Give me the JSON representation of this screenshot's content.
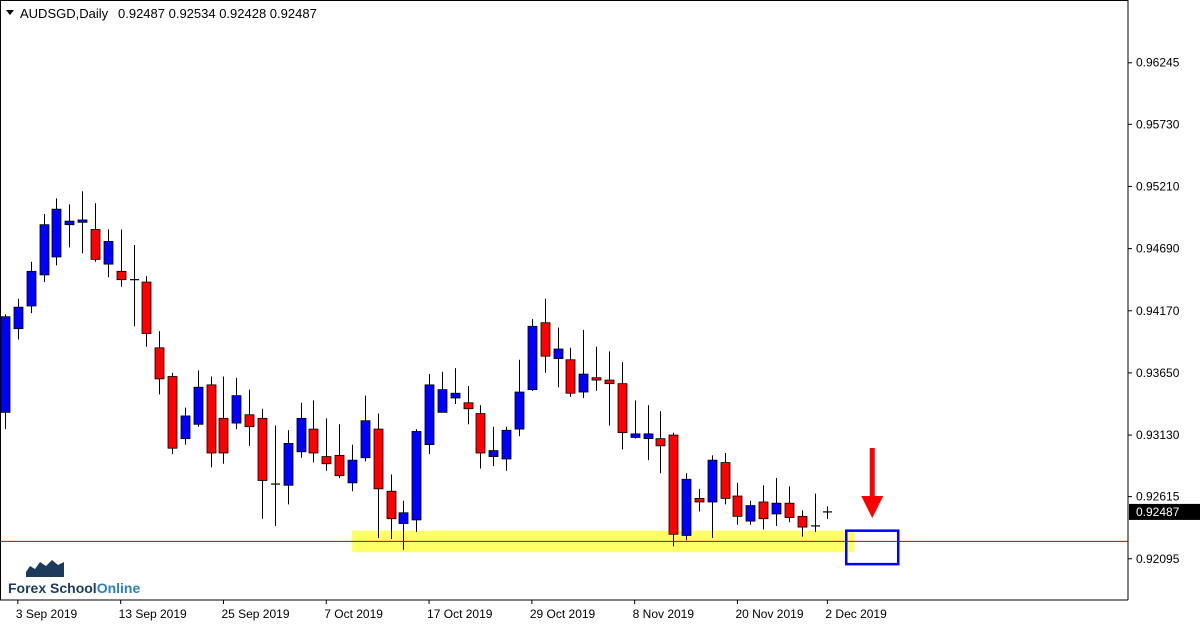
{
  "header": {
    "symbol_timeframe": "AUDSGD,Daily",
    "ohlc": "0.92487 0.92534 0.92428 0.92487"
  },
  "logo": {
    "text_1": "Forex School",
    "text_2": "Online"
  },
  "colors": {
    "bull": "#0000ff",
    "bear": "#ff0000",
    "wick": "#000000",
    "support_zone": "#ffff66",
    "price_line": "#c00000",
    "arrow": "#ff0000",
    "box": "#0000ff",
    "logo_blue": "#2a7fc1",
    "logo_dark": "#1b3a5c"
  },
  "annotations": {
    "support_zone": {
      "x_start": "10 Oct 2019",
      "x_end": "29 Nov 2019",
      "y_low": 0.9215,
      "y_high": 0.9233
    },
    "arrow_target_box": {
      "x": "3 Dec 2019",
      "y_low": 0.9205,
      "y_high": 0.9233
    }
  },
  "chart_data": {
    "type": "candlestick",
    "title": "AUDSGD,Daily",
    "current_price": "0.92487",
    "ylim": [
      0.9175,
      0.9677
    ],
    "y_ticks": [
      "0.96245",
      "0.95730",
      "0.95210",
      "0.94690",
      "0.94170",
      "0.93650",
      "0.93130",
      "0.92615",
      "0.92095"
    ],
    "x_ticks": [
      "3 Sep 2019",
      "13 Sep 2019",
      "25 Sep 2019",
      "7 Oct 2019",
      "17 Oct 2019",
      "29 Oct 2019",
      "8 Nov 2019",
      "20 Nov 2019",
      "2 Dec 2019"
    ],
    "candles": [
      {
        "date": "2 Sep 2019",
        "o": 0.9332,
        "h": 0.9414,
        "l": 0.9318,
        "c": 0.9412
      },
      {
        "date": "3 Sep 2019",
        "o": 0.9402,
        "h": 0.9427,
        "l": 0.9393,
        "c": 0.942
      },
      {
        "date": "4 Sep 2019",
        "o": 0.9421,
        "h": 0.9458,
        "l": 0.9415,
        "c": 0.945
      },
      {
        "date": "5 Sep 2019",
        "o": 0.9447,
        "h": 0.9498,
        "l": 0.9441,
        "c": 0.9489
      },
      {
        "date": "6 Sep 2019",
        "o": 0.9462,
        "h": 0.9511,
        "l": 0.9455,
        "c": 0.9502
      },
      {
        "date": "9 Sep 2019",
        "o": 0.9489,
        "h": 0.9506,
        "l": 0.947,
        "c": 0.9492
      },
      {
        "date": "10 Sep 2019",
        "o": 0.9491,
        "h": 0.9517,
        "l": 0.9465,
        "c": 0.9493
      },
      {
        "date": "11 Sep 2019",
        "o": 0.9485,
        "h": 0.9507,
        "l": 0.9458,
        "c": 0.946
      },
      {
        "date": "12 Sep 2019",
        "o": 0.9456,
        "h": 0.9485,
        "l": 0.9445,
        "c": 0.9475
      },
      {
        "date": "13 Sep 2019",
        "o": 0.945,
        "h": 0.9485,
        "l": 0.9437,
        "c": 0.9443
      },
      {
        "date": "16 Sep 2019",
        "o": 0.9443,
        "h": 0.9472,
        "l": 0.9404,
        "c": 0.9443
      },
      {
        "date": "17 Sep 2019",
        "o": 0.9441,
        "h": 0.9446,
        "l": 0.9387,
        "c": 0.9398
      },
      {
        "date": "18 Sep 2019",
        "o": 0.9386,
        "h": 0.94,
        "l": 0.9347,
        "c": 0.936
      },
      {
        "date": "19 Sep 2019",
        "o": 0.9362,
        "h": 0.9365,
        "l": 0.9297,
        "c": 0.9302
      },
      {
        "date": "20 Sep 2019",
        "o": 0.931,
        "h": 0.9336,
        "l": 0.9305,
        "c": 0.9329
      },
      {
        "date": "23 Sep 2019",
        "o": 0.9322,
        "h": 0.9367,
        "l": 0.932,
        "c": 0.9353
      },
      {
        "date": "24 Sep 2019",
        "o": 0.9355,
        "h": 0.9362,
        "l": 0.9286,
        "c": 0.9298
      },
      {
        "date": "25 Sep 2019",
        "o": 0.9327,
        "h": 0.9362,
        "l": 0.9289,
        "c": 0.9298
      },
      {
        "date": "26 Sep 2019",
        "o": 0.9323,
        "h": 0.9361,
        "l": 0.9318,
        "c": 0.9346
      },
      {
        "date": "27 Sep 2019",
        "o": 0.933,
        "h": 0.9351,
        "l": 0.9304,
        "c": 0.932
      },
      {
        "date": "30 Sep 2019",
        "o": 0.9327,
        "h": 0.9335,
        "l": 0.9243,
        "c": 0.9275
      },
      {
        "date": "1 Oct 2019",
        "o": 0.9273,
        "h": 0.9321,
        "l": 0.9237,
        "c": 0.9272
      },
      {
        "date": "2 Oct 2019",
        "o": 0.9271,
        "h": 0.9317,
        "l": 0.9255,
        "c": 0.9306
      },
      {
        "date": "3 Oct 2019",
        "o": 0.9299,
        "h": 0.934,
        "l": 0.9294,
        "c": 0.9327
      },
      {
        "date": "4 Oct 2019",
        "o": 0.9318,
        "h": 0.9342,
        "l": 0.929,
        "c": 0.9298
      },
      {
        "date": "7 Oct 2019",
        "o": 0.9295,
        "h": 0.9327,
        "l": 0.9283,
        "c": 0.9289
      },
      {
        "date": "8 Oct 2019",
        "o": 0.9296,
        "h": 0.9322,
        "l": 0.9277,
        "c": 0.9279
      },
      {
        "date": "9 Oct 2019",
        "o": 0.9273,
        "h": 0.9305,
        "l": 0.9266,
        "c": 0.9292
      },
      {
        "date": "10 Oct 2019",
        "o": 0.9294,
        "h": 0.9346,
        "l": 0.9291,
        "c": 0.9325
      },
      {
        "date": "11 Oct 2019",
        "o": 0.9318,
        "h": 0.9331,
        "l": 0.9227,
        "c": 0.9268
      },
      {
        "date": "14 Oct 2019",
        "o": 0.9266,
        "h": 0.928,
        "l": 0.9226,
        "c": 0.9243
      },
      {
        "date": "15 Oct 2019",
        "o": 0.9239,
        "h": 0.9258,
        "l": 0.9217,
        "c": 0.9248
      },
      {
        "date": "16 Oct 2019",
        "o": 0.9242,
        "h": 0.9318,
        "l": 0.9232,
        "c": 0.9316
      },
      {
        "date": "17 Oct 2019",
        "o": 0.9305,
        "h": 0.9364,
        "l": 0.9297,
        "c": 0.9355
      },
      {
        "date": "18 Oct 2019",
        "o": 0.9332,
        "h": 0.9366,
        "l": 0.9332,
        "c": 0.9351
      },
      {
        "date": "21 Oct 2019",
        "o": 0.9344,
        "h": 0.9369,
        "l": 0.9339,
        "c": 0.9348
      },
      {
        "date": "22 Oct 2019",
        "o": 0.934,
        "h": 0.9354,
        "l": 0.9322,
        "c": 0.9335
      },
      {
        "date": "23 Oct 2019",
        "o": 0.9331,
        "h": 0.9338,
        "l": 0.9285,
        "c": 0.9298
      },
      {
        "date": "24 Oct 2019",
        "o": 0.9295,
        "h": 0.932,
        "l": 0.9287,
        "c": 0.93
      },
      {
        "date": "25 Oct 2019",
        "o": 0.9293,
        "h": 0.932,
        "l": 0.9283,
        "c": 0.9317
      },
      {
        "date": "28 Oct 2019",
        "o": 0.9318,
        "h": 0.9376,
        "l": 0.9312,
        "c": 0.9349
      },
      {
        "date": "29 Oct 2019",
        "o": 0.9351,
        "h": 0.941,
        "l": 0.935,
        "c": 0.9404
      },
      {
        "date": "30 Oct 2019",
        "o": 0.9407,
        "h": 0.9427,
        "l": 0.9365,
        "c": 0.9379
      },
      {
        "date": "31 Oct 2019",
        "o": 0.9377,
        "h": 0.9403,
        "l": 0.9353,
        "c": 0.9385
      },
      {
        "date": "1 Nov 2019",
        "o": 0.9376,
        "h": 0.9386,
        "l": 0.9345,
        "c": 0.9348
      },
      {
        "date": "4 Nov 2019",
        "o": 0.9349,
        "h": 0.9401,
        "l": 0.9344,
        "c": 0.9364
      },
      {
        "date": "5 Nov 2019",
        "o": 0.9361,
        "h": 0.9387,
        "l": 0.935,
        "c": 0.9359
      },
      {
        "date": "6 Nov 2019",
        "o": 0.9359,
        "h": 0.9383,
        "l": 0.9321,
        "c": 0.9356
      },
      {
        "date": "7 Nov 2019",
        "o": 0.9356,
        "h": 0.9374,
        "l": 0.9301,
        "c": 0.9315
      },
      {
        "date": "8 Nov 2019",
        "o": 0.9311,
        "h": 0.9342,
        "l": 0.931,
        "c": 0.9314
      },
      {
        "date": "11 Nov 2019",
        "o": 0.931,
        "h": 0.9338,
        "l": 0.9292,
        "c": 0.9314
      },
      {
        "date": "12 Nov 2019",
        "o": 0.931,
        "h": 0.9333,
        "l": 0.9281,
        "c": 0.9304
      },
      {
        "date": "13 Nov 2019",
        "o": 0.9313,
        "h": 0.9315,
        "l": 0.922,
        "c": 0.923
      },
      {
        "date": "14 Nov 2019",
        "o": 0.9229,
        "h": 0.9281,
        "l": 0.9225,
        "c": 0.9276
      },
      {
        "date": "15 Nov 2019",
        "o": 0.926,
        "h": 0.9268,
        "l": 0.9249,
        "c": 0.9257
      },
      {
        "date": "18 Nov 2019",
        "o": 0.9257,
        "h": 0.9296,
        "l": 0.9227,
        "c": 0.9292
      },
      {
        "date": "19 Nov 2019",
        "o": 0.929,
        "h": 0.9298,
        "l": 0.9255,
        "c": 0.926
      },
      {
        "date": "20 Nov 2019",
        "o": 0.9262,
        "h": 0.9273,
        "l": 0.9238,
        "c": 0.9245
      },
      {
        "date": "21 Nov 2019",
        "o": 0.9241,
        "h": 0.9258,
        "l": 0.9238,
        "c": 0.9254
      },
      {
        "date": "22 Nov 2019",
        "o": 0.9257,
        "h": 0.9271,
        "l": 0.9234,
        "c": 0.9243
      },
      {
        "date": "25 Nov 2019",
        "o": 0.9247,
        "h": 0.9277,
        "l": 0.9237,
        "c": 0.9256
      },
      {
        "date": "26 Nov 2019",
        "o": 0.9256,
        "h": 0.927,
        "l": 0.924,
        "c": 0.9244
      },
      {
        "date": "27 Nov 2019",
        "o": 0.9245,
        "h": 0.925,
        "l": 0.9228,
        "c": 0.9236
      },
      {
        "date": "28 Nov 2019",
        "o": 0.9236,
        "h": 0.9264,
        "l": 0.9232,
        "c": 0.9237
      },
      {
        "date": "2 Dec 2019",
        "o": 0.92487,
        "h": 0.92534,
        "l": 0.92428,
        "c": 0.92487
      }
    ]
  }
}
